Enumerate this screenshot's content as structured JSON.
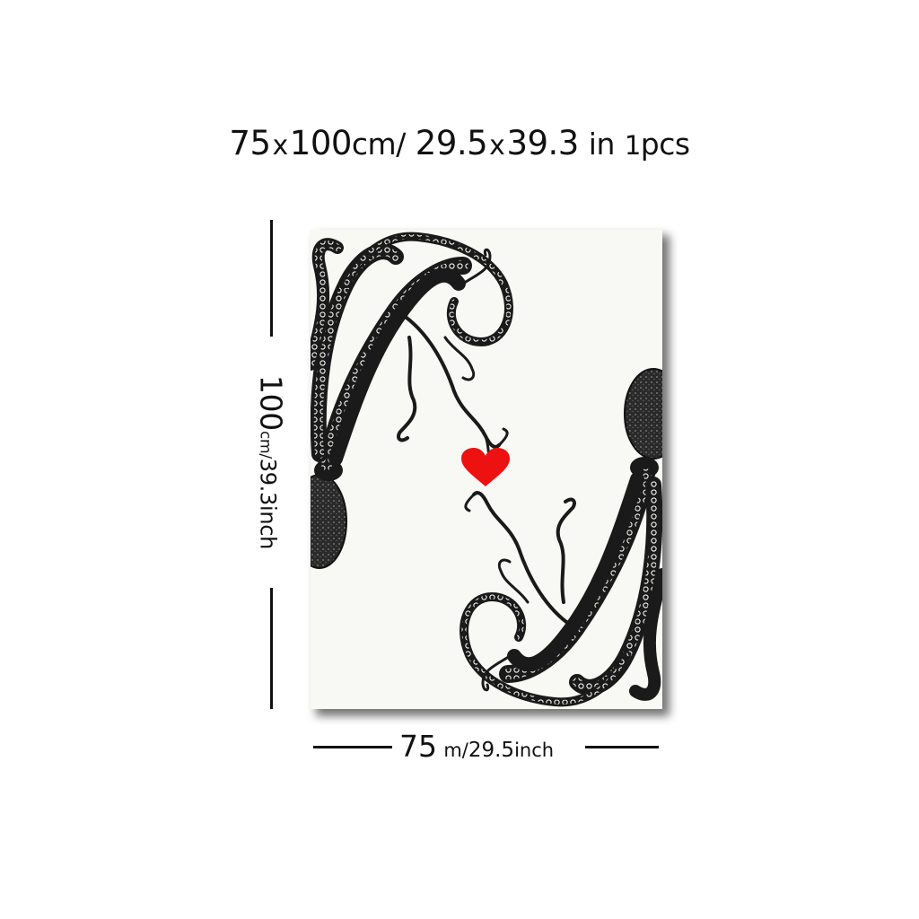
{
  "title": {
    "width": "75",
    "x1": "x",
    "height": "100",
    "cm_unit": "cm/",
    "width_in": "29.5",
    "x2": "x",
    "height_in": "39.3",
    "in_unit": "in",
    "qty": "1",
    "qty_unit": "pcs"
  },
  "height_dimension": {
    "value": "100",
    "unit": "cm/",
    "inch_value": "39.3",
    "inch_unit": "inch"
  },
  "width_dimension": {
    "value": "75",
    "unit": "m/",
    "inch_value": "29.5",
    "inch_unit": "inch"
  },
  "artwork": {
    "subject": "two octopuses holding a heart",
    "heart_color": "#ee1111",
    "ink_color": "#1a1a1a",
    "paper_color": "#f8f8f5"
  }
}
